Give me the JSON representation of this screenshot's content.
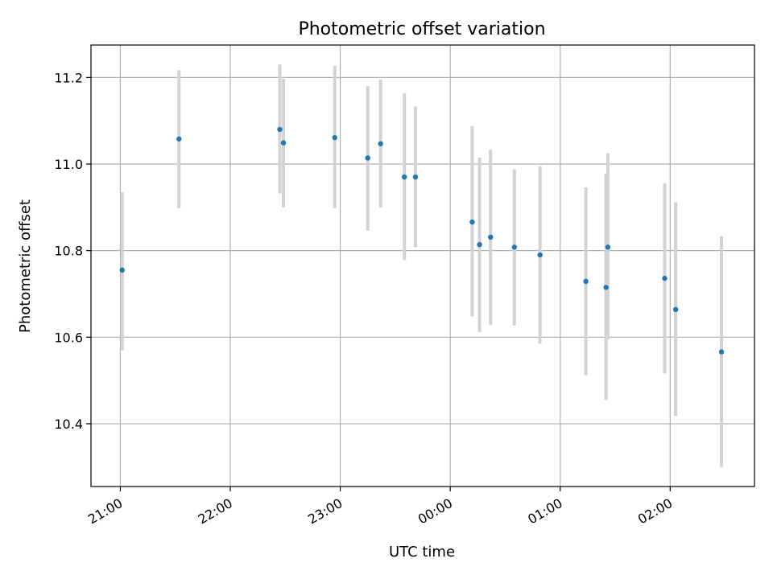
{
  "chart_data": {
    "type": "scatter",
    "title": "Photometric offset variation",
    "xlabel": "UTC time",
    "ylabel": "Photometric offset",
    "x_range": [
      "20:44",
      "02:46"
    ],
    "ylim": [
      10.255,
      11.275
    ],
    "x_ticks": [
      "21:00",
      "22:00",
      "23:00",
      "00:00",
      "01:00",
      "02:00"
    ],
    "y_ticks": [
      10.4,
      10.6,
      10.8,
      11.0,
      11.2
    ],
    "y_tick_labels": [
      "10.4",
      "10.6",
      "10.8",
      "11.0",
      "11.2"
    ],
    "grid": true,
    "legend": "none",
    "points": [
      {
        "time": "21:01",
        "y": 10.755,
        "err_low": 10.57,
        "err_high": 10.935
      },
      {
        "time": "21:32",
        "y": 11.058,
        "err_low": 10.898,
        "err_high": 11.217
      },
      {
        "time": "22:27",
        "y": 11.08,
        "err_low": 10.932,
        "err_high": 11.23
      },
      {
        "time": "22:29",
        "y": 11.049,
        "err_low": 10.9,
        "err_high": 11.197
      },
      {
        "time": "22:57",
        "y": 11.061,
        "err_low": 10.898,
        "err_high": 11.227
      },
      {
        "time": "23:15",
        "y": 11.014,
        "err_low": 10.846,
        "err_high": 11.18
      },
      {
        "time": "23:22",
        "y": 11.047,
        "err_low": 10.9,
        "err_high": 11.195
      },
      {
        "time": "23:35",
        "y": 10.97,
        "err_low": 10.778,
        "err_high": 11.163
      },
      {
        "time": "23:41",
        "y": 10.97,
        "err_low": 10.808,
        "err_high": 11.133
      },
      {
        "time": "00:12",
        "y": 10.866,
        "err_low": 10.648,
        "err_high": 11.088
      },
      {
        "time": "00:16",
        "y": 10.814,
        "err_low": 10.612,
        "err_high": 11.015
      },
      {
        "time": "00:22",
        "y": 10.831,
        "err_low": 10.628,
        "err_high": 11.033
      },
      {
        "time": "00:35",
        "y": 10.808,
        "err_low": 10.627,
        "err_high": 10.988
      },
      {
        "time": "00:49",
        "y": 10.79,
        "err_low": 10.585,
        "err_high": 10.995
      },
      {
        "time": "01:14",
        "y": 10.729,
        "err_low": 10.512,
        "err_high": 10.946
      },
      {
        "time": "01:25",
        "y": 10.715,
        "err_low": 10.455,
        "err_high": 10.978
      },
      {
        "time": "01:26",
        "y": 10.808,
        "err_low": 10.595,
        "err_high": 11.025
      },
      {
        "time": "01:57",
        "y": 10.736,
        "err_low": 10.516,
        "err_high": 10.956
      },
      {
        "time": "02:03",
        "y": 10.664,
        "err_low": 10.418,
        "err_high": 10.912
      },
      {
        "time": "02:28",
        "y": 10.566,
        "err_low": 10.3,
        "err_high": 10.833
      }
    ],
    "colors": {
      "point": "#1f77b4",
      "errorbar": "#d3d3d3",
      "grid": "#b0b0b0",
      "axes": "#000000"
    }
  }
}
